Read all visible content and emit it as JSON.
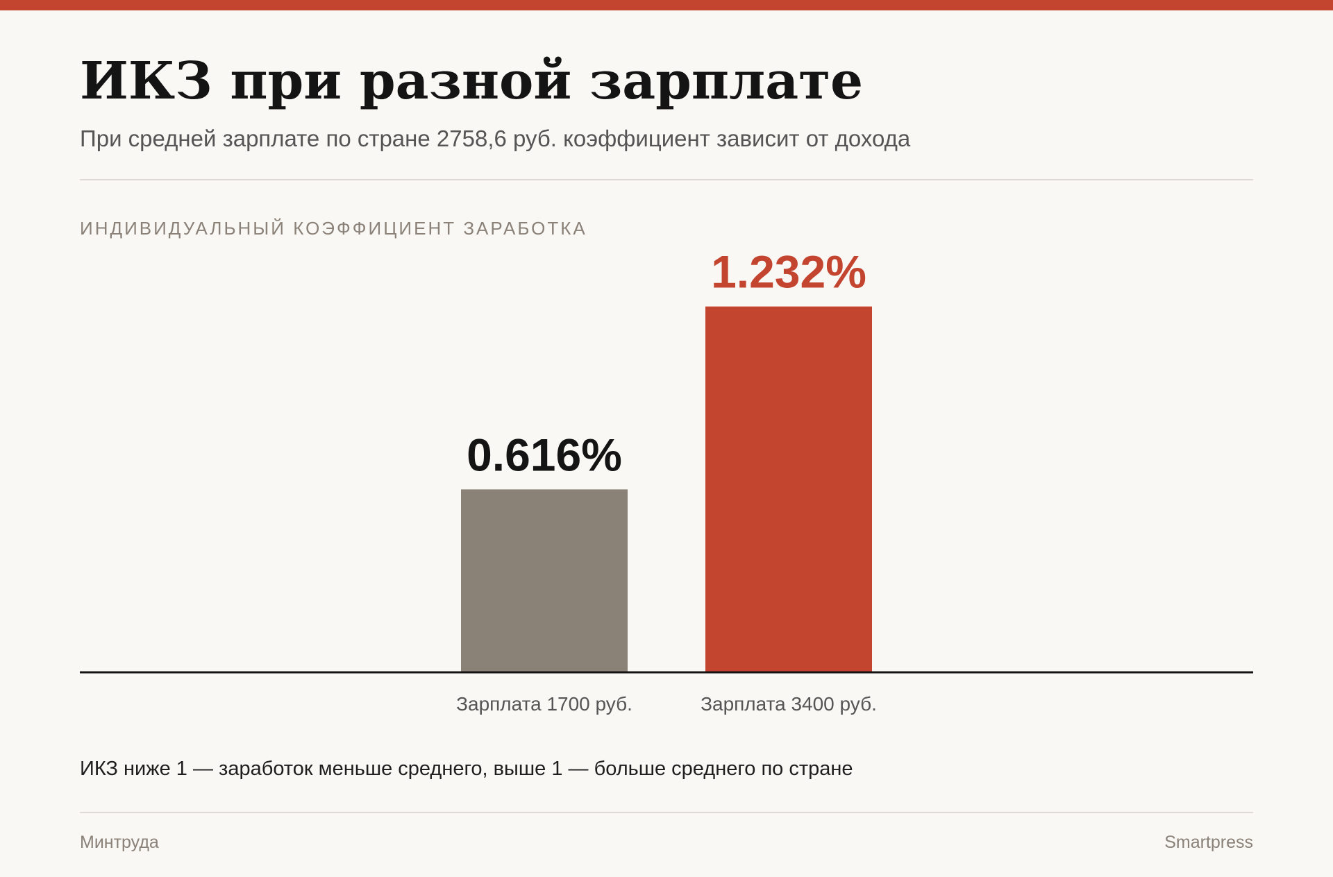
{
  "colors": {
    "accent": "#c3442f",
    "muted_bar": "#8b8277",
    "background": "#faf8f5",
    "text_dark": "#141414"
  },
  "header": {
    "title": "ИКЗ при разной зарплате",
    "subtitle": "При средней зарплате по стране 2758,6 руб. коэффициент зависит от дохода"
  },
  "chart_data": {
    "type": "bar",
    "title": "ИКЗ при разной зарплате",
    "ylabel": "ИНДИВИДУАЛЬНЫЙ КОЭФФИЦИЕНТ ЗАРАБОТКА",
    "xlabel": "",
    "categories": [
      "Зарплата 1700 руб.",
      "Зарплата 3400 руб."
    ],
    "values": [
      0.616,
      1.232
    ],
    "value_labels": [
      "0.616%",
      "1.232%"
    ],
    "bar_colors": [
      "#8b8277",
      "#c3442f"
    ],
    "label_colors": [
      "#141414",
      "#c3442f"
    ],
    "ylim": [
      0,
      1.4
    ],
    "grid": false,
    "legend": "none"
  },
  "footer": {
    "note": "ИКЗ ниже 1 — заработок меньше среднего, выше 1 — больше среднего по стране",
    "source": "Минтруда",
    "brand": "Smartpress"
  }
}
